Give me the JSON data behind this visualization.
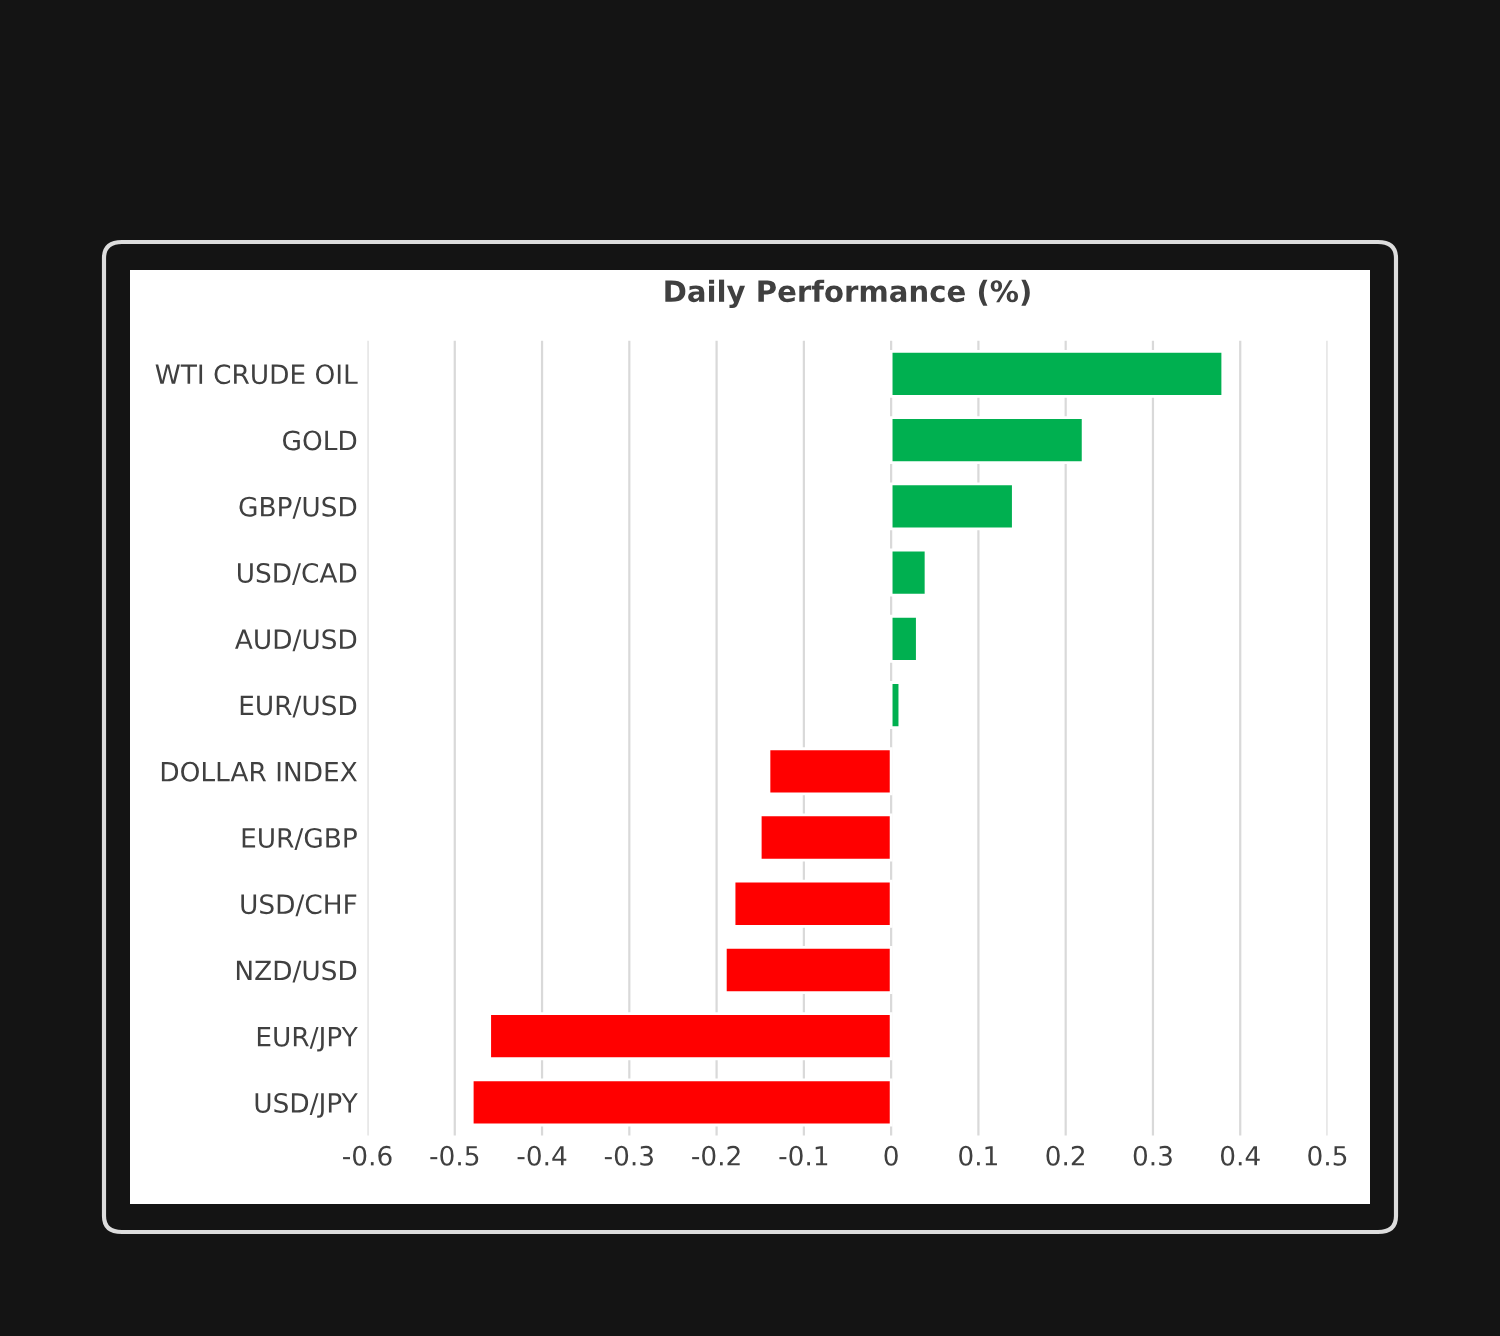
{
  "chart_data": {
    "type": "bar",
    "orientation": "horizontal",
    "title": "Daily Performance (%)",
    "categories": [
      "WTI CRUDE OIL",
      "GOLD",
      "GBP/USD",
      "USD/CAD",
      "AUD/USD",
      "EUR/USD",
      "DOLLAR INDEX",
      "EUR/GBP",
      "USD/CHF",
      "NZD/USD",
      "EUR/JPY",
      "USD/JPY"
    ],
    "values": [
      0.38,
      0.22,
      0.14,
      0.04,
      0.03,
      0.01,
      -0.14,
      -0.15,
      -0.18,
      -0.19,
      -0.46,
      -0.48
    ],
    "colors": [
      "#00b050",
      "#00b050",
      "#00b050",
      "#00b050",
      "#00b050",
      "#00b050",
      "#ff0000",
      "#ff0000",
      "#ff0000",
      "#ff0000",
      "#ff0000",
      "#ff0000"
    ],
    "xlim": [
      -0.6,
      0.5
    ],
    "xticks": [
      -0.6,
      -0.5,
      -0.4,
      -0.3,
      -0.2,
      -0.1,
      0,
      0.1,
      0.2,
      0.3,
      0.4,
      0.5
    ],
    "grid": "x"
  }
}
